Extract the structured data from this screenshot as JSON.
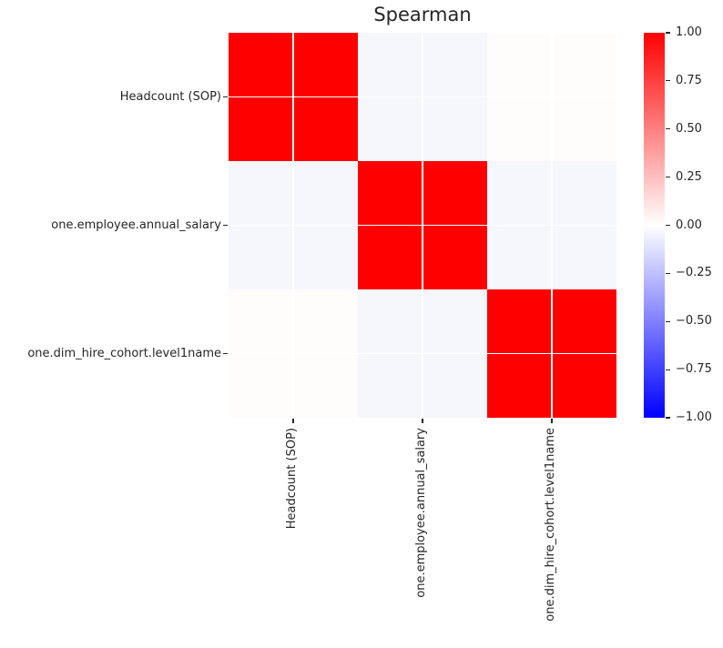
{
  "figure": {
    "background_color": "#ffffff",
    "text_color": "#262626"
  },
  "chart_data": {
    "type": "heatmap",
    "title": "Spearman",
    "categories": [
      "Headcount (SOP)",
      "one.employee.annual_salary",
      "one.dim_hire_cohort.level1name"
    ],
    "matrix": [
      [
        1.0,
        -0.03,
        0.01
      ],
      [
        -0.03,
        1.0,
        -0.03
      ],
      [
        0.01,
        -0.03,
        1.0
      ]
    ],
    "cell_colors": [
      [
        "#ff0000",
        "#f6f7fd",
        "#fffdfb"
      ],
      [
        "#f6f7fd",
        "#ff0000",
        "#f6f7fd"
      ],
      [
        "#fffdfb",
        "#f6f7fd",
        "#ff0000"
      ]
    ],
    "vmin": -1.0,
    "vmax": 1.0,
    "grid_color": "#ffffff",
    "legend_position": "right",
    "colorbar": {
      "tick_labels": [
        "1.00",
        "0.75",
        "0.50",
        "0.25",
        "0.00",
        "−0.25",
        "−0.50",
        "−0.75",
        "−1.00"
      ],
      "tick_values": [
        1.0,
        0.75,
        0.5,
        0.25,
        0.0,
        -0.25,
        -0.5,
        -0.75,
        -1.0
      ],
      "top_color": "#ff0000",
      "mid_color": "#ffffff",
      "bottom_color": "#0000ff"
    }
  }
}
